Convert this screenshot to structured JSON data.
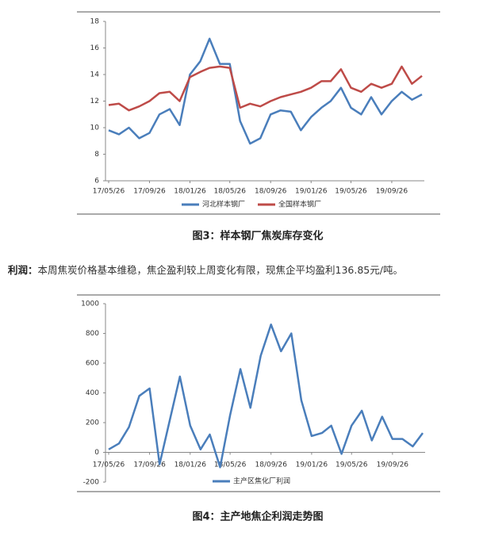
{
  "chart_data": [
    {
      "type": "line",
      "title": "图3：样本钢厂焦炭库存变化",
      "x": [
        "17/05/26",
        "17/06/26",
        "17/07/26",
        "17/08/26",
        "17/09/26",
        "17/10/26",
        "17/11/26",
        "17/12/26",
        "18/01/26",
        "18/02/26",
        "18/03/26",
        "18/04/26",
        "18/05/26",
        "18/06/26",
        "18/07/26",
        "18/08/26",
        "18/09/26",
        "18/10/26",
        "18/11/26",
        "18/12/26",
        "19/01/26",
        "19/02/26",
        "19/03/26",
        "19/04/26",
        "19/05/26",
        "19/06/26",
        "19/07/26",
        "19/08/26",
        "19/09/26",
        "19/10/26",
        "19/11/26",
        "19/12/26"
      ],
      "series": [
        {
          "name": "河北样本钢厂",
          "color": "#4a7ebb",
          "values": [
            9.8,
            9.5,
            10.0,
            9.2,
            9.6,
            11.0,
            11.4,
            10.2,
            14.0,
            15.0,
            16.7,
            14.8,
            14.8,
            10.5,
            8.8,
            9.2,
            11.0,
            11.3,
            11.2,
            9.8,
            10.8,
            11.5,
            12.0,
            13.0,
            11.5,
            11.0,
            12.3,
            11.0,
            12.0,
            12.7,
            12.1,
            12.5
          ]
        },
        {
          "name": "全国样本钢厂",
          "color": "#be4b48",
          "values": [
            11.7,
            11.8,
            11.3,
            11.6,
            12.0,
            12.6,
            12.7,
            12.0,
            13.8,
            14.2,
            14.5,
            14.6,
            14.5,
            11.5,
            11.8,
            11.6,
            12.0,
            12.3,
            12.5,
            12.7,
            13.0,
            13.5,
            13.5,
            14.4,
            13.0,
            12.7,
            13.3,
            13.0,
            13.3,
            14.6,
            13.3,
            13.9
          ]
        }
      ],
      "xlim": [
        "17/05/26",
        "19/12/26"
      ],
      "xticks": [
        "17/05/26",
        "17/09/26",
        "18/01/26",
        "18/05/26",
        "18/09/26",
        "19/01/26",
        "19/05/26",
        "19/09/26"
      ],
      "ylim": [
        6,
        18
      ],
      "yticks": [
        6,
        8,
        10,
        12,
        14,
        16,
        18
      ],
      "legend": "bottom"
    },
    {
      "type": "line",
      "title": "图4：主产地焦企利润走势图",
      "x": [
        "17/05/26",
        "17/06/26",
        "17/07/26",
        "17/08/26",
        "17/09/26",
        "17/10/26",
        "17/11/26",
        "17/12/26",
        "18/01/26",
        "18/02/26",
        "18/03/26",
        "18/04/26",
        "18/05/26",
        "18/06/26",
        "18/07/26",
        "18/08/26",
        "18/09/26",
        "18/10/26",
        "18/11/26",
        "18/12/26",
        "19/01/26",
        "19/02/26",
        "19/03/26",
        "19/04/26",
        "19/05/26",
        "19/06/26",
        "19/07/26",
        "19/08/26",
        "19/09/26",
        "19/10/26",
        "19/11/26",
        "19/12/26"
      ],
      "series": [
        {
          "name": "主产区焦化厂利润",
          "color": "#4a7ebb",
          "values": [
            20,
            60,
            170,
            380,
            430,
            -80,
            220,
            510,
            180,
            20,
            120,
            -100,
            250,
            560,
            300,
            650,
            860,
            680,
            800,
            350,
            110,
            130,
            180,
            -10,
            180,
            280,
            80,
            240,
            90,
            90,
            40,
            130
          ]
        }
      ],
      "xlim": [
        "17/05/26",
        "19/12/26"
      ],
      "xticks": [
        "17/05/26",
        "17/09/26",
        "18/01/26",
        "18/05/26",
        "18/09/26",
        "19/01/26",
        "19/05/26",
        "19/09/26"
      ],
      "ylim": [
        -200,
        1000
      ],
      "yticks": [
        -200,
        0,
        200,
        400,
        600,
        800,
        1000
      ],
      "legend": "bottom"
    }
  ],
  "paragraph": {
    "label": "利润：",
    "text": "本周焦炭价格基本维稳，焦企盈利较上周变化有限，现焦企平均盈利136.85元/吨。"
  }
}
